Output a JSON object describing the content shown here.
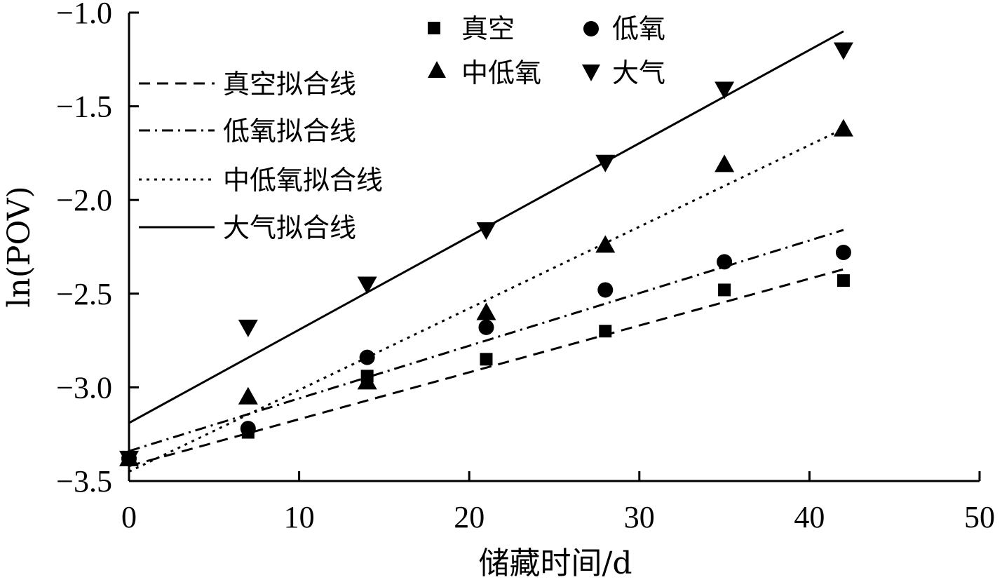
{
  "chart_data": {
    "type": "scatter",
    "xlabel": "储藏时间/d",
    "ylabel": "ln(POV)",
    "xlim": [
      0,
      50
    ],
    "ylim": [
      -3.5,
      -1.0
    ],
    "x_ticks": [
      0,
      10,
      20,
      30,
      40,
      50
    ],
    "y_ticks": [
      -3.5,
      -3.0,
      -2.5,
      -2.0,
      -1.5,
      -1.0
    ],
    "x_tick_labels": [
      "0",
      "10",
      "20",
      "30",
      "40",
      "50"
    ],
    "y_tick_labels": [
      "−3.5",
      "−3.0",
      "−2.5",
      "−2.0",
      "−1.5",
      "−1.0"
    ],
    "grid": false,
    "x": [
      0,
      7,
      14,
      21,
      28,
      35,
      42
    ],
    "series": [
      {
        "name": "真空",
        "marker": "square",
        "values": [
          -3.38,
          -3.24,
          -2.94,
          -2.85,
          -2.7,
          -2.48,
          -2.43
        ]
      },
      {
        "name": "低氧",
        "marker": "circle",
        "values": [
          -3.38,
          -3.22,
          -2.84,
          -2.68,
          -2.48,
          -2.33,
          -2.28
        ]
      },
      {
        "name": "中低氧",
        "marker": "triangle-up",
        "values": [
          -3.38,
          -3.05,
          -2.97,
          -2.6,
          -2.24,
          -1.81,
          -1.62
        ]
      },
      {
        "name": "大气",
        "marker": "triangle-down",
        "values": [
          -3.38,
          -2.68,
          -2.45,
          -2.16,
          -1.8,
          -1.41,
          -1.2
        ]
      }
    ],
    "fit_lines": [
      {
        "name": "真空拟合线",
        "style": "dashed",
        "x": [
          0,
          42
        ],
        "y": [
          -3.42,
          -2.37
        ]
      },
      {
        "name": "低氧拟合线",
        "style": "dashdot",
        "x": [
          0,
          42
        ],
        "y": [
          -3.34,
          -2.16
        ]
      },
      {
        "name": "中低氧拟合线",
        "style": "dotted",
        "x": [
          0,
          42
        ],
        "y": [
          -3.45,
          -1.62
        ]
      },
      {
        "name": "大气拟合线",
        "style": "solid",
        "x": [
          0,
          42
        ],
        "y": [
          -3.19,
          -1.1
        ]
      }
    ]
  }
}
